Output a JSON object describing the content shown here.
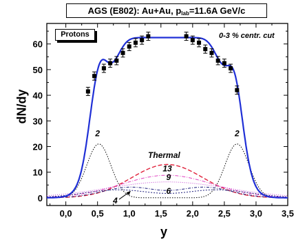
{
  "title_main": "AGS (E802):  Au+Au,  p",
  "title_sub": "lab",
  "title_tail": "=11.6A GeV/c",
  "legend_box": "Protons",
  "centrality_cut": "0-3 % centr. cut",
  "chart_data": {
    "type": "line",
    "xlabel": "y",
    "ylabel": "dN/dy",
    "xlim": [
      -0.3,
      3.5
    ],
    "ylim": [
      -3,
      68
    ],
    "x_ticks": [
      0.0,
      0.5,
      1.0,
      1.5,
      2.0,
      2.5,
      3.0,
      3.5
    ],
    "x_tick_labels": [
      "0,0",
      "0,5",
      "1,0",
      "1,5",
      "2,0",
      "2,5",
      "3,0",
      "3,5"
    ],
    "y_ticks": [
      0,
      10,
      20,
      30,
      40,
      50,
      60
    ],
    "y_tick_labels": [
      "0",
      "10",
      "20",
      "30",
      "40",
      "50",
      "60"
    ],
    "grid": false,
    "data_points": {
      "x": [
        0.35,
        0.45,
        0.6,
        0.7,
        0.8,
        0.9,
        1.0,
        1.1,
        1.2,
        1.3,
        1.9,
        2.0,
        2.1,
        2.2,
        2.3,
        2.4,
        2.5,
        2.6,
        2.7
      ],
      "y": [
        41.5,
        47.5,
        50.5,
        52.5,
        53.5,
        56.5,
        59,
        60.5,
        61.5,
        63,
        63,
        61.5,
        60.5,
        58,
        56.5,
        53.5,
        52.5,
        50.5,
        42
      ]
    },
    "annotations": [
      "2",
      "2",
      "Thermal",
      "13",
      "9",
      "6",
      "4"
    ],
    "colors": {
      "total": "#1f2fd6",
      "thermal": "#e0203a",
      "source13": "#e040c0",
      "source9": "#c040d0",
      "source6": "#1a1a7a",
      "source4": "#1a1a7a",
      "source2": "#000000",
      "points": "#000000"
    }
  }
}
